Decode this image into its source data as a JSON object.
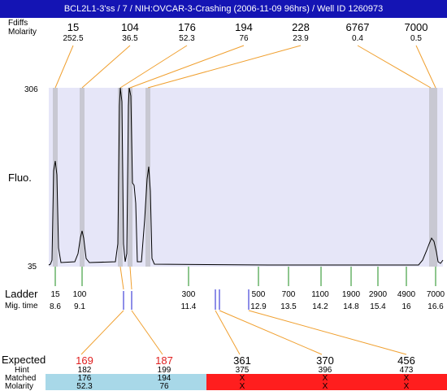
{
  "title": "BCL2L1-3'ss / 7 / NIH:OVCAR-3-Crashing (2006-11-09 96hrs) / Well ID 1260973",
  "top": {
    "labels": [
      "Fdiffs",
      "Molarity"
    ],
    "peaks": [
      {
        "size": "15",
        "molarity": "252.5"
      },
      {
        "size": "104",
        "molarity": "36.5"
      },
      {
        "size": "176",
        "molarity": "52.3"
      },
      {
        "size": "194",
        "molarity": "76"
      },
      {
        "size": "228",
        "molarity": "23.9"
      },
      {
        "size": "6767",
        "molarity": "0.4"
      },
      {
        "size": "7000",
        "molarity": "0.5"
      }
    ]
  },
  "plot": {
    "ylabel": "Fluo.",
    "ymax": "306",
    "ymin": "35"
  },
  "ladder": {
    "label": "Ladder",
    "mig_label": "Mig. time",
    "items": [
      {
        "size": "15",
        "time": "8.6"
      },
      {
        "size": "100",
        "time": "9.1"
      },
      {
        "size": "300",
        "time": "11.4"
      },
      {
        "size": "500",
        "time": "12.9"
      },
      {
        "size": "700",
        "time": "13.5"
      },
      {
        "size": "1100",
        "time": "14.2"
      },
      {
        "size": "1900",
        "time": "14.8"
      },
      {
        "size": "2900",
        "time": "15.4"
      },
      {
        "size": "4900",
        "time": "16"
      },
      {
        "size": "7000",
        "time": "16.6"
      }
    ]
  },
  "bottom": {
    "labels": [
      "Expected",
      "Hint",
      "Matched",
      "Molarity"
    ],
    "items": [
      {
        "expected": "169",
        "hint": "182",
        "matched": "176",
        "molarity": "52.3"
      },
      {
        "expected": "187",
        "hint": "199",
        "matched": "194",
        "molarity": "76"
      },
      {
        "expected": "361",
        "hint": "375",
        "matched": "X",
        "molarity": "X"
      },
      {
        "expected": "370",
        "hint": "396",
        "matched": "X",
        "molarity": "X"
      },
      {
        "expected": "456",
        "hint": "473",
        "matched": "X",
        "molarity": "X"
      }
    ]
  },
  "colors": {
    "title_bg": "#1414b4",
    "plot_bg": "#e6e6f8",
    "peak_band": "#c8c8d2",
    "ladder_tick": "#1e8c1e",
    "marker": "#1e1ed2",
    "connector": "#f0a030",
    "matched_bg": "#a8d8e8",
    "unmatched_bg": "#ff1e1e",
    "expected_red": "#e01e1e"
  }
}
